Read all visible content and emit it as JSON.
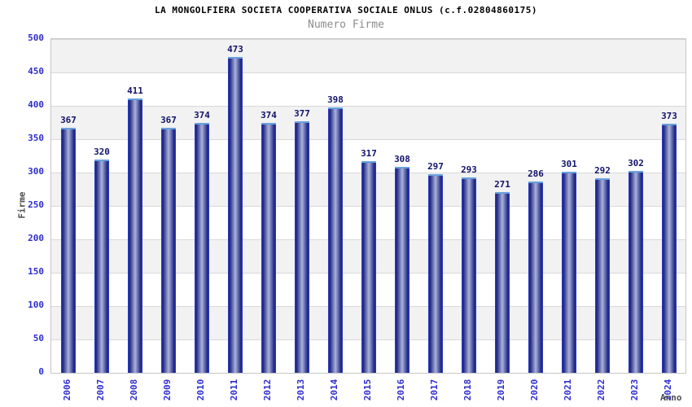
{
  "chart_data": {
    "type": "bar",
    "title": "LA MONGOLFIERA SOCIETA COOPERATIVA SOCIALE ONLUS (c.f.02804860175)",
    "subtitle": "Numero Firme",
    "xlabel": "Anno",
    "ylabel": "Firme",
    "categories": [
      "2006",
      "2007",
      "2008",
      "2009",
      "2010",
      "2011",
      "2012",
      "2013",
      "2014",
      "2015",
      "2016",
      "2017",
      "2018",
      "2019",
      "2020",
      "2021",
      "2022",
      "2023",
      "2024"
    ],
    "values": [
      367,
      320,
      411,
      367,
      374,
      473,
      374,
      377,
      398,
      317,
      308,
      297,
      293,
      271,
      286,
      301,
      292,
      302,
      373
    ],
    "ylim": [
      0,
      500
    ],
    "ytick_step": 50,
    "grid": "horizontal-bands",
    "legend_position": "none",
    "value_labels": "above-bars",
    "colors": {
      "title": "#000000",
      "subtitle": "#8c8c8c",
      "tick_label": "#2d2dcf",
      "value_label": "#12126b",
      "axis_title": "#4d4d4d",
      "bar_outline": "#2e41cc",
      "bar_dark": "#1b2380",
      "bar_center": "#aab2da",
      "bar_top": "#66a0dd",
      "band_alt": "#f2f2f2",
      "band_main": "#ffffff",
      "gridline": "#d9d9d9",
      "plot_border": "#c6c6c6",
      "background": "#ffffff"
    }
  }
}
